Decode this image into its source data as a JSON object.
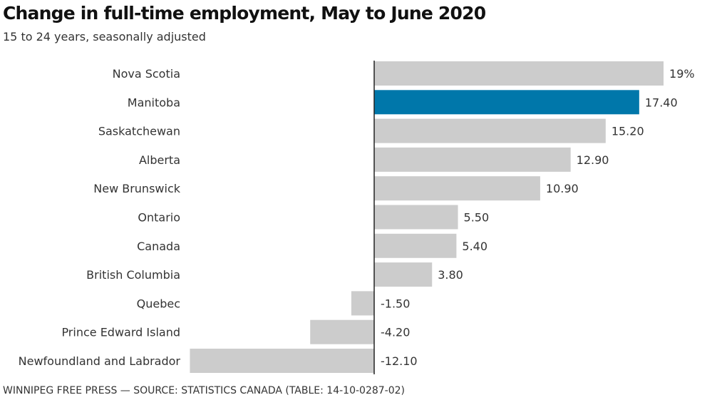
{
  "chart_data": {
    "type": "bar",
    "orientation": "horizontal",
    "title": "Change in full-time employment, May to June 2020",
    "subtitle": "15 to 24 years, seasonally adjusted",
    "categories": [
      "Nova Scotia",
      "Manitoba",
      "Saskatchewan",
      "Alberta",
      "New Brunswick",
      "Ontario",
      "Canada",
      "British Columbia",
      "Quebec",
      "Prince Edward Island",
      "Newfoundland and Labrador"
    ],
    "values": [
      19,
      17.4,
      15.2,
      12.9,
      10.9,
      5.5,
      5.4,
      3.8,
      -1.5,
      -4.2,
      -12.1
    ],
    "value_labels": [
      "19%",
      "17.40",
      "15.20",
      "12.90",
      "10.90",
      "5.50",
      "5.40",
      "3.80",
      "-1.50",
      "-4.20",
      "-12.10"
    ],
    "highlight": "Manitoba",
    "colors": {
      "default": "#cccccc",
      "highlight": "#0077aa",
      "axis": "#222222"
    },
    "grid": false,
    "legend": "none"
  },
  "footer": "WINNIPEG FREE PRESS — SOURCE: STATISTICS CANADA (TABLE: 14-10-0287-02)"
}
